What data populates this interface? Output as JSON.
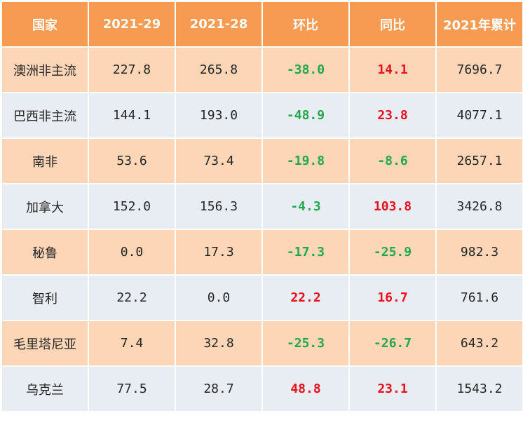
{
  "table": {
    "headers": [
      "国家",
      "2021-29",
      "2021-28",
      "环比",
      "同比",
      "2021年累计"
    ],
    "rows": [
      {
        "country": "澳洲非主流",
        "wk29": "227.8",
        "wk28": "265.8",
        "mom": "-38.0",
        "yoy": "14.1",
        "ytd": "7696.7"
      },
      {
        "country": "巴西非主流",
        "wk29": "144.1",
        "wk28": "193.0",
        "mom": "-48.9",
        "yoy": "23.8",
        "ytd": "4077.1"
      },
      {
        "country": "南非",
        "wk29": "53.6",
        "wk28": "73.4",
        "mom": "-19.8",
        "yoy": "-8.6",
        "ytd": "2657.1"
      },
      {
        "country": "加拿大",
        "wk29": "152.0",
        "wk28": "156.3",
        "mom": "-4.3",
        "yoy": "103.8",
        "ytd": "3426.8"
      },
      {
        "country": "秘鲁",
        "wk29": "0.0",
        "wk28": "17.3",
        "mom": "-17.3",
        "yoy": "-25.9",
        "ytd": "982.3"
      },
      {
        "country": "智利",
        "wk29": "22.2",
        "wk28": "0.0",
        "mom": "22.2",
        "yoy": "16.7",
        "ytd": "761.6"
      },
      {
        "country": "毛里塔尼亚",
        "wk29": "7.4",
        "wk28": "32.8",
        "mom": "-25.3",
        "yoy": "-26.7",
        "ytd": "643.2"
      },
      {
        "country": "乌克兰",
        "wk29": "77.5",
        "wk28": "28.7",
        "mom": "48.8",
        "yoy": "23.1",
        "ytd": "1543.2"
      }
    ]
  },
  "colors": {
    "header_bg": "#f79a52",
    "row_odd_bg": "#fcd6b6",
    "row_even_bg": "#e8ecf3",
    "positive": "#e8101d",
    "negative": "#21a94b"
  }
}
